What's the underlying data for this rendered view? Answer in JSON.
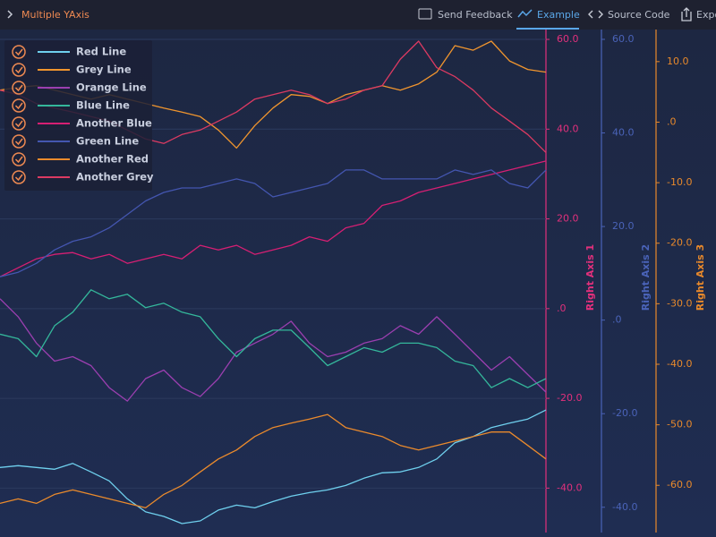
{
  "toolbar": {
    "title": "Multiple YAxis",
    "buttons": [
      "Send Feedback",
      "Example",
      "Source Code",
      "Export"
    ]
  },
  "chart_data": {
    "type": "line",
    "grid": true,
    "legend": "top-left",
    "yaxes": [
      {
        "title": "Right Axis 1",
        "color": "#e2307c",
        "ylim": [
          -49.9,
          62.2
        ],
        "yticks": [
          {
            "value": -40,
            "label": "-40.0"
          },
          {
            "value": -20,
            "label": "-20.0"
          },
          {
            "value": 0,
            "label": ".0"
          },
          {
            "value": 20,
            "label": "20.0"
          },
          {
            "value": 40,
            "label": "40.0"
          },
          {
            "value": 60,
            "label": "60.0"
          }
        ]
      },
      {
        "title": "Right Axis 2",
        "color": "#4a63b8",
        "ylim": [
          -45.4,
          62.1
        ],
        "yticks": [
          {
            "value": -40,
            "label": "-40.0"
          },
          {
            "value": -20,
            "label": "-20.0"
          },
          {
            "value": 0,
            "label": ".0"
          },
          {
            "value": 20,
            "label": "20.0"
          },
          {
            "value": 40,
            "label": "40.0"
          },
          {
            "value": 60,
            "label": "60.0"
          }
        ]
      },
      {
        "title": "Right Axis 3",
        "color": "#e8892b",
        "ylim": [
          -67.8,
          15.3
        ],
        "yticks": [
          {
            "value": -60,
            "label": "-60.0"
          },
          {
            "value": -50,
            "label": "-50.0"
          },
          {
            "value": -40,
            "label": "-40.0"
          },
          {
            "value": -30,
            "label": "-30.0"
          },
          {
            "value": -20,
            "label": "-20.0"
          },
          {
            "value": -10,
            "label": "-10.0"
          },
          {
            "value": 0,
            "label": ".0"
          },
          {
            "value": 10,
            "label": "10.0"
          }
        ]
      }
    ],
    "series": [
      {
        "name": "Red Line",
        "color": "#6fd0ee",
        "values": [
          -35.4,
          -35.0,
          -35.4,
          -35.8,
          -34.5,
          -36.4,
          -38.4,
          -42.4,
          -45.3,
          -46.3,
          -47.9,
          -47.3,
          -44.9,
          -43.8,
          -44.4,
          -43.0,
          -41.8,
          -41.0,
          -40.4,
          -39.4,
          -37.8,
          -36.6,
          -36.4,
          -35.4,
          -33.5,
          -29.9,
          -28.5,
          -26.5,
          -25.5,
          -24.6,
          -22.6
        ]
      },
      {
        "name": "Grey Line",
        "color": "#f0952e",
        "values": [
          48.7,
          49.3,
          49.7,
          48.7,
          47.7,
          46.7,
          47.7,
          46.7,
          45.7,
          44.7,
          43.8,
          42.8,
          39.8,
          35.8,
          40.8,
          44.7,
          47.7,
          47.3,
          45.7,
          47.7,
          48.7,
          49.7,
          48.7,
          50.1,
          52.7,
          58.6,
          57.6,
          59.6,
          55.2,
          53.3,
          52.7
        ]
      },
      {
        "name": "Orange Line",
        "color": "#9b3fb0",
        "values": [
          2.2,
          -1.8,
          -7.7,
          -11.7,
          -10.7,
          -12.7,
          -17.6,
          -20.6,
          -15.6,
          -13.7,
          -17.6,
          -19.6,
          -15.6,
          -9.7,
          -7.7,
          -5.7,
          -2.8,
          -7.7,
          -10.7,
          -9.7,
          -7.7,
          -6.7,
          -3.8,
          -5.7,
          -1.8,
          -5.7,
          -9.7,
          -13.7,
          -10.7,
          -14.7,
          -18.6
        ]
      },
      {
        "name": "Blue Line",
        "color": "#34b79b",
        "values": [
          -5.7,
          -6.7,
          -10.7,
          -3.8,
          -0.8,
          4.2,
          2.2,
          3.2,
          0.2,
          1.2,
          -0.8,
          -1.8,
          -6.7,
          -10.7,
          -6.7,
          -4.8,
          -4.8,
          -8.7,
          -12.7,
          -10.7,
          -8.7,
          -9.7,
          -7.7,
          -7.7,
          -8.7,
          -11.7,
          -12.7,
          -17.6,
          -15.6,
          -17.6,
          -15.6
        ]
      },
      {
        "name": "Another Blue",
        "color": "#d61f73",
        "values": [
          7.1,
          9.1,
          11.1,
          12.1,
          12.5,
          11.1,
          12.1,
          10.1,
          11.1,
          12.1,
          11.1,
          14.1,
          13.1,
          14.1,
          12.1,
          13.1,
          14.1,
          16.0,
          15.0,
          18.0,
          19.0,
          23.0,
          24.0,
          25.9,
          26.9,
          27.9,
          28.9,
          29.9,
          30.9,
          31.9,
          32.9
        ]
      },
      {
        "name": "Green Line",
        "color": "#4456b0",
        "values": [
          7.1,
          8.1,
          10.1,
          13.1,
          15.0,
          16.0,
          18.0,
          21.0,
          24.0,
          25.9,
          26.9,
          26.9,
          27.9,
          28.9,
          27.9,
          24.9,
          25.9,
          26.9,
          27.9,
          30.9,
          30.9,
          28.9,
          28.9,
          28.9,
          28.9,
          30.9,
          29.9,
          30.9,
          27.9,
          26.9,
          30.9
        ]
      },
      {
        "name": "Another Red",
        "color": "#ea8a2c",
        "values": [
          -43.4,
          -42.4,
          -43.4,
          -41.4,
          -40.4,
          -41.4,
          -42.4,
          -43.4,
          -44.4,
          -41.4,
          -39.4,
          -36.4,
          -33.5,
          -31.5,
          -28.5,
          -26.5,
          -25.5,
          -24.6,
          -23.6,
          -26.5,
          -27.5,
          -28.5,
          -30.5,
          -31.5,
          -30.5,
          -29.5,
          -28.5,
          -27.5,
          -27.5,
          -30.5,
          -33.5
        ]
      },
      {
        "name": "Another Grey",
        "color": "#dc3a62",
        "values": [
          48.7,
          47.7,
          45.7,
          44.7,
          43.8,
          42.8,
          41.8,
          39.8,
          37.8,
          36.8,
          38.8,
          39.8,
          41.8,
          43.8,
          46.7,
          47.7,
          48.7,
          47.7,
          45.7,
          46.7,
          48.7,
          49.7,
          55.6,
          59.6,
          53.7,
          51.7,
          48.7,
          44.7,
          41.8,
          38.8,
          34.8
        ]
      }
    ]
  }
}
